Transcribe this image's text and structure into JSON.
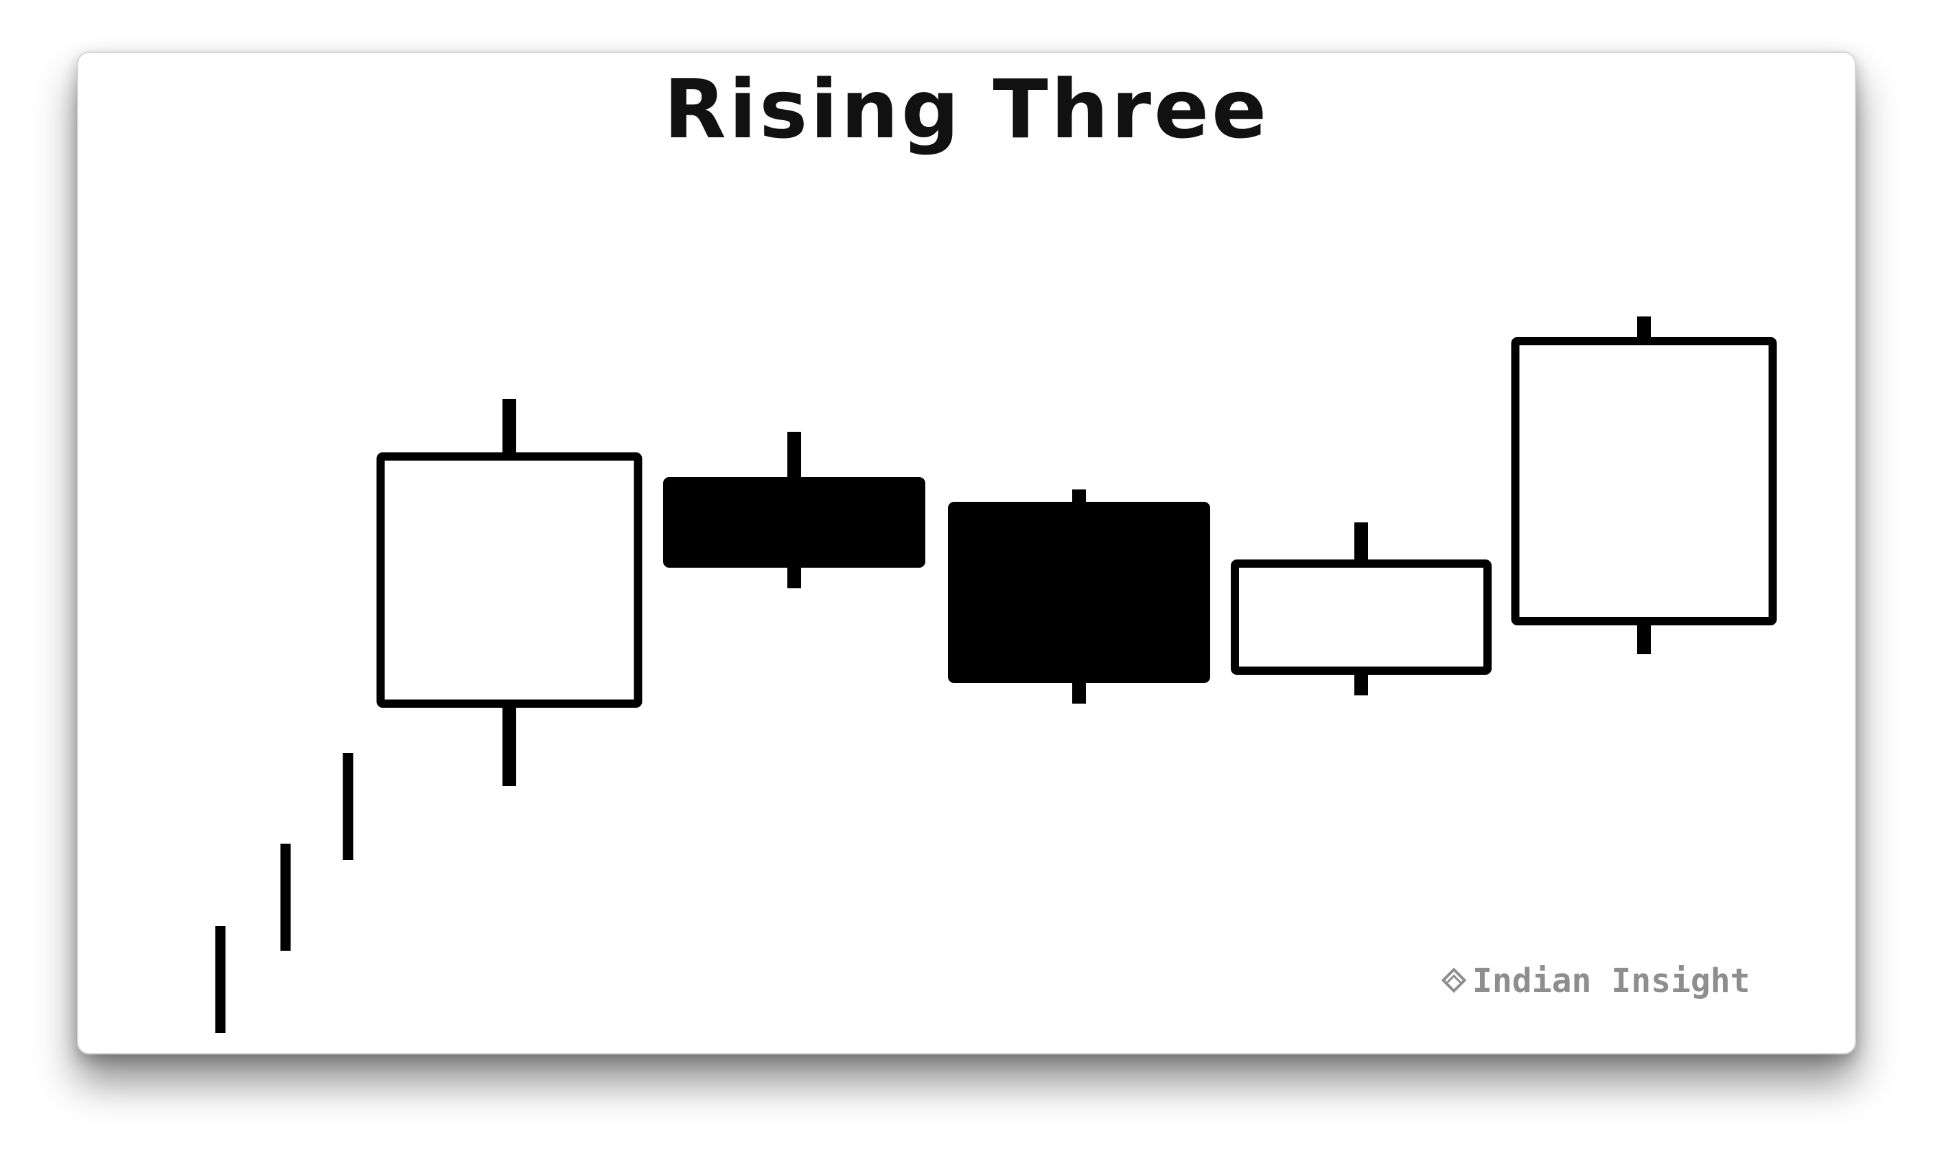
{
  "chart_data": {
    "type": "candlestick",
    "title": "Rising Three",
    "xlabel": "",
    "ylabel": "",
    "grid": false,
    "legend": "none",
    "ylim": [
      0,
      100
    ],
    "prior_trend_ticks": [
      {
        "low": 0,
        "high": 13
      },
      {
        "low": 10,
        "high": 23
      },
      {
        "low": 21,
        "high": 34
      }
    ],
    "candles": [
      {
        "open": 40,
        "close": 70,
        "high": 77,
        "low": 30,
        "color": "white"
      },
      {
        "open": 67,
        "close": 57,
        "high": 73,
        "low": 54,
        "color": "black"
      },
      {
        "open": 64,
        "close": 43,
        "high": 66,
        "low": 40,
        "color": "black"
      },
      {
        "open": 44,
        "close": 57,
        "high": 62,
        "low": 41,
        "color": "white"
      },
      {
        "open": 50,
        "close": 84,
        "high": 87,
        "low": 46,
        "color": "white"
      }
    ]
  },
  "watermark": {
    "text": "Indian Insight",
    "icon": "diamond-logo-icon"
  },
  "colors": {
    "stroke": "#000000",
    "bullish_fill": "#ffffff",
    "bearish_fill": "#000000",
    "watermark": "#8e8e8e"
  }
}
